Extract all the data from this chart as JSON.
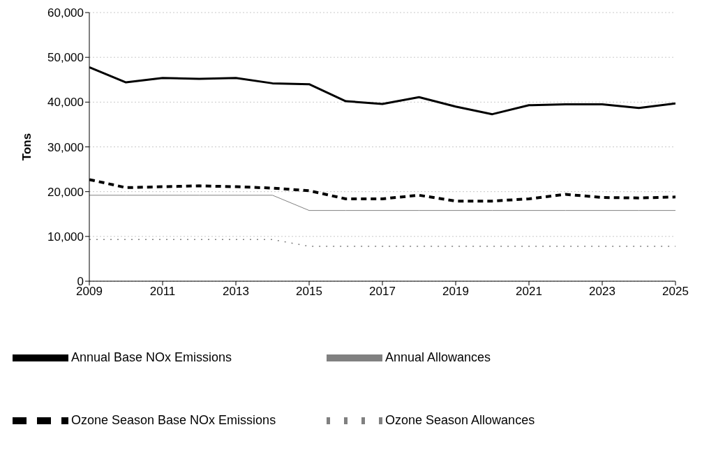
{
  "chart_data": {
    "type": "line",
    "ylabel": "Tons",
    "x": [
      2009,
      2010,
      2011,
      2012,
      2013,
      2014,
      2015,
      2016,
      2017,
      2018,
      2019,
      2020,
      2021,
      2022,
      2023,
      2024,
      2025
    ],
    "xlim": [
      2009,
      2025
    ],
    "xticks": [
      2009,
      2011,
      2013,
      2015,
      2017,
      2019,
      2021,
      2023,
      2025
    ],
    "ylim": [
      0,
      60000
    ],
    "yticks": [
      {
        "value": 0,
        "label": "0"
      },
      {
        "value": 10000,
        "label": "10,000"
      },
      {
        "value": 20000,
        "label": "20,000"
      },
      {
        "value": 30000,
        "label": "30,000"
      },
      {
        "value": 40000,
        "label": "40,000"
      },
      {
        "value": 50000,
        "label": "50,000"
      },
      {
        "value": 60000,
        "label": "60,000"
      }
    ],
    "grid": "y",
    "legend": "bottom",
    "marker": "none",
    "series": [
      {
        "name": "Annual Base NOx Emissions",
        "color": "#000000",
        "line_style": "solid",
        "values": [
          47800,
          44400,
          45400,
          45200,
          45400,
          44200,
          44000,
          40200,
          39600,
          41100,
          39000,
          37300,
          39300,
          39500,
          39500,
          38700,
          39700
        ]
      },
      {
        "name": "Annual Allowances",
        "color": "#808080",
        "line_style": "solid",
        "values": [
          19200,
          19200,
          19200,
          19200,
          19200,
          19200,
          15800,
          15800,
          15800,
          15800,
          15800,
          15800,
          15800,
          15800,
          15800,
          15800,
          15800
        ]
      },
      {
        "name": "Ozone Season Base NOx Emissions",
        "color": "#000000",
        "line_style": "dashed",
        "values": [
          22700,
          20900,
          21100,
          21300,
          21100,
          20800,
          20200,
          18400,
          18400,
          19200,
          17900,
          17900,
          18400,
          19400,
          18700,
          18600,
          18800
        ]
      },
      {
        "name": "Ozone Season Allowances",
        "color": "#808080",
        "line_style": "dotted",
        "values": [
          9300,
          9300,
          9300,
          9300,
          9300,
          9300,
          7800,
          7800,
          7800,
          7800,
          7800,
          7800,
          7800,
          7800,
          7800,
          7800,
          7800
        ]
      }
    ]
  }
}
